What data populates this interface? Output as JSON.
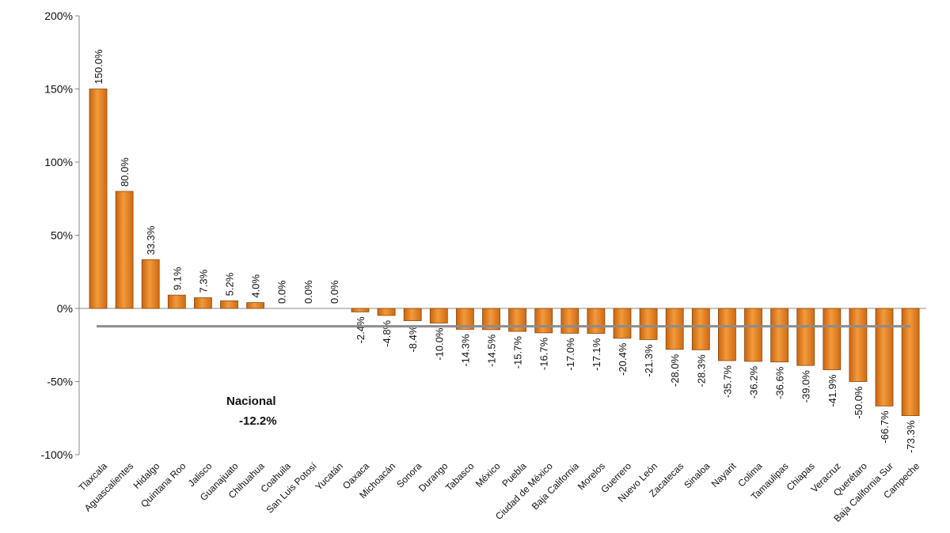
{
  "chart_data": {
    "type": "bar",
    "title": "",
    "xlabel": "",
    "ylabel": "",
    "ylim": [
      -100,
      200
    ],
    "yticks": [
      "200%",
      "150%",
      "100%",
      "50%",
      "0%",
      "-50%",
      "-100%"
    ],
    "ytick_values": [
      200,
      150,
      100,
      50,
      0,
      -50,
      -100
    ],
    "grid": false,
    "categories": [
      "Tlaxcala",
      "Aguascalientes",
      "Hidalgo",
      "Quintana Roo",
      "Jalisco",
      "Guanajuato",
      "Chihuahua",
      "Coahuila",
      "San Luis Potosí",
      "Yucatán",
      "Oaxaca",
      "Michoacán",
      "Sonora",
      "Durango",
      "Tabasco",
      "México",
      "Puebla",
      "Ciudad de México",
      "Baja California",
      "Morelos",
      "Guerrero",
      "Nuevo León",
      "Zacatecas",
      "Sinaloa",
      "Nayarit",
      "Colima",
      "Tamaulipas",
      "Chiapas",
      "Veracruz",
      "Querétaro",
      "Baja California Sur",
      "Campeche"
    ],
    "values": [
      150.0,
      80.0,
      33.3,
      9.1,
      7.3,
      5.2,
      4.0,
      0.0,
      0.0,
      0.0,
      -2.4,
      -4.8,
      -8.4,
      -10.0,
      -14.3,
      -14.5,
      -15.7,
      -16.7,
      -17.0,
      -17.1,
      -20.4,
      -21.3,
      -28.0,
      -28.3,
      -35.7,
      -36.2,
      -36.6,
      -39.0,
      -41.9,
      -50.0,
      -66.7,
      -73.3
    ],
    "value_labels": [
      "150.0%",
      "80.0%",
      "33.3%",
      "9.1%",
      "7.3%",
      "5.2%",
      "4.0%",
      "0.0%",
      "0.0%",
      "0.0%",
      "-2.4%",
      "-4.8%",
      "-8.4%",
      "-10.0%",
      "-14.3%",
      "-14.5%",
      "-15.7%",
      "-16.7%",
      "-17.0%",
      "-17.1%",
      "-20.4%",
      "-21.3%",
      "-28.0%",
      "-28.3%",
      "-35.7%",
      "-36.2%",
      "-36.6%",
      "-39.0%",
      "-41.9%",
      "-50.0%",
      "-66.7%",
      "-73.3%"
    ],
    "reference_line": {
      "label": "Nacional",
      "value": -12.2,
      "value_label": "-12.2%",
      "color": "#8c8c8c"
    },
    "colors": {
      "bar": "#e8801e",
      "bar_edge": "#8a4a10"
    }
  }
}
